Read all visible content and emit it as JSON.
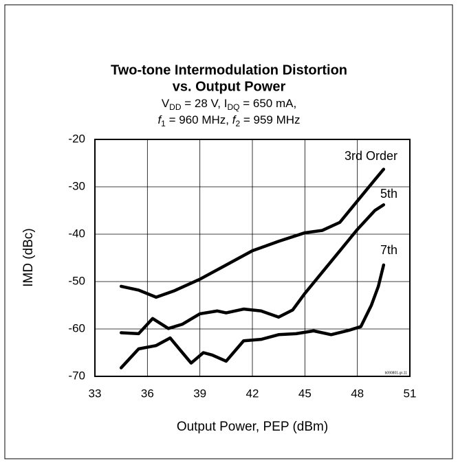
{
  "chart_data": {
    "type": "line",
    "title": [
      "Two-tone Intermodulation Distortion",
      "vs. Output Power"
    ],
    "subtitle": [
      [
        {
          "text": "V"
        },
        {
          "sub": "DD"
        },
        {
          "text": " = 28 V, I"
        },
        {
          "sub": "DQ"
        },
        {
          "text": " = 650 mA,"
        }
      ],
      [
        {
          "italic": "f"
        },
        {
          "sub": "1"
        },
        {
          "text": " = 960 MHz, "
        },
        {
          "italic": "f"
        },
        {
          "sub": "2"
        },
        {
          "text": " = 959 MHz"
        }
      ]
    ],
    "x_label": "Output Power, PEP (dBm)",
    "y_label": "IMD (dBc)",
    "xlim": [
      33,
      51
    ],
    "xticks": [
      33,
      36,
      39,
      42,
      45,
      48,
      51
    ],
    "ylim": [
      -70,
      -20
    ],
    "yticks": [
      -70,
      -60,
      -50,
      -40,
      -30,
      -20
    ],
    "grid": true,
    "series": [
      {
        "name": "3rd Order",
        "color": "#000000",
        "x": [
          34.5,
          35.5,
          36.5,
          37.5,
          39,
          40.5,
          42,
          43.5,
          45,
          46,
          47,
          48,
          49,
          49.5
        ],
        "values": [
          -51,
          -51.8,
          -53.3,
          -52,
          -49.5,
          -46.5,
          -43.5,
          -41.5,
          -39.7,
          -39.2,
          -37.5,
          -33,
          -28.5,
          -26.3
        ]
      },
      {
        "name": "5th",
        "color": "#000000",
        "x": [
          34.5,
          35.5,
          36.3,
          37.2,
          38,
          39,
          40,
          40.5,
          41.5,
          42.5,
          43.5,
          44.3,
          45,
          46,
          47,
          48,
          49,
          49.5
        ],
        "values": [
          -60.8,
          -61,
          -57.8,
          -59.9,
          -59,
          -56.8,
          -56.2,
          -56.6,
          -55.8,
          -56.2,
          -57.5,
          -56,
          -52.5,
          -48,
          -43.5,
          -39,
          -35,
          -33.8
        ]
      },
      {
        "name": "7th",
        "color": "#000000",
        "x": [
          34.5,
          35.5,
          36.5,
          37.3,
          38,
          38.5,
          39.2,
          39.7,
          40.5,
          41.5,
          42.5,
          43.5,
          44.5,
          45.5,
          46.5,
          47.5,
          48.2,
          48.8,
          49.2,
          49.5
        ],
        "values": [
          -68.2,
          -64.2,
          -63.5,
          -61.9,
          -65,
          -67.2,
          -65,
          -65.5,
          -66.8,
          -62.5,
          -62.2,
          -61.2,
          -61,
          -60.4,
          -61.2,
          -60.3,
          -59.5,
          -55,
          -51,
          -46.5
        ]
      }
    ],
    "figure_code": "b090801-gr-11"
  }
}
